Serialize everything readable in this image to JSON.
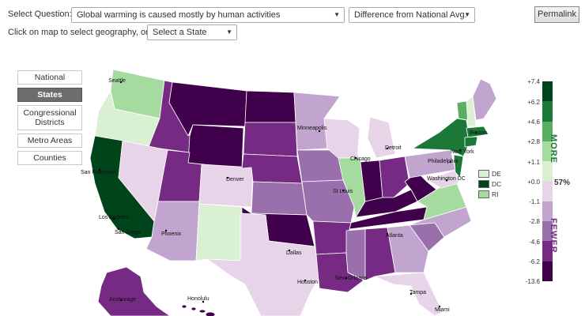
{
  "header": {
    "select_question_label": "Select Question:",
    "question_value": "Global warming is caused mostly by human activities",
    "measure_value": "Difference from National Avg.",
    "permalink_label": "Permalink",
    "click_label": "Click on map to select geography, or:",
    "state_select_value": "Select a State"
  },
  "geo_nav": {
    "items": [
      {
        "label": "National",
        "active": false
      },
      {
        "label": "States",
        "active": true
      },
      {
        "label": "Congressional Districts",
        "active": false
      },
      {
        "label": "Metro Areas",
        "active": false
      },
      {
        "label": "Counties",
        "active": false
      }
    ]
  },
  "legend": {
    "ticks": [
      "+7.4",
      "+6.2",
      "+4.6",
      "+2.8",
      "+1.1",
      "+0.0",
      "-1.1",
      "-2.8",
      "-4.6",
      "-6.2",
      "-13.6"
    ],
    "national_value": "57%",
    "more_label": "MORE",
    "fewer_label": "FEWER",
    "colors": [
      "#00441b",
      "#1b7837",
      "#5aae61",
      "#a6dba0",
      "#d9f0d3",
      "#e7d4e8",
      "#c2a5cf",
      "#9970ab",
      "#762a83",
      "#40004b"
    ]
  },
  "small_states": [
    {
      "abbr": "DE",
      "color": "#d9f0d3"
    },
    {
      "abbr": "DC",
      "color": "#00441b"
    },
    {
      "abbr": "RI",
      "color": "#a6dba0"
    }
  ],
  "cities": [
    "Seattle",
    "San Francisco",
    "Los Angeles",
    "San Diego",
    "Phoenix",
    "Denver",
    "Minneapolis",
    "Chicago",
    "Detroit",
    "St Louis",
    "Dallas",
    "Houston",
    "New Orleans",
    "Atlanta",
    "Tampa",
    "Miami",
    "Washington DC",
    "Philadelphia",
    "New York",
    "Boston",
    "Anchorage",
    "Honolulu"
  ]
}
